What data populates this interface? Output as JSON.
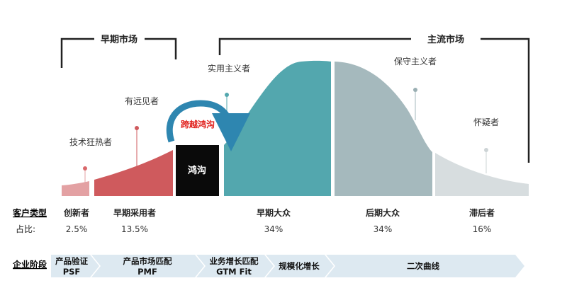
{
  "market_labels": {
    "early": "早期市场",
    "mainstream": "主流市场"
  },
  "segment_labels": {
    "innovators": "技术狂热者",
    "early_adopters": "有远见者",
    "early_majority": "实用主义者",
    "late_majority": "保守主义者",
    "laggards": "怀疑者"
  },
  "chasm": {
    "box_label": "鸿沟",
    "arrow_label": "跨越鸿沟"
  },
  "customer_types": {
    "row_title": "客户类型",
    "items": [
      "创新者",
      "早期采用者",
      "早期大众",
      "后期大众",
      "滞后者"
    ]
  },
  "share": {
    "row_title": "占比:",
    "values": [
      "2.5%",
      "13.5%",
      "34%",
      "34%",
      "16%"
    ]
  },
  "stages": {
    "row_title": "企业阶段",
    "items": [
      {
        "line1": "产品验证",
        "line2": "PSF"
      },
      {
        "line1": "产品市场匹配",
        "line2": "PMF"
      },
      {
        "line1": "业务增长匹配",
        "line2": "GTM Fit"
      },
      {
        "line1": "规模化增长",
        "line2": ""
      },
      {
        "line1": "二次曲线",
        "line2": ""
      }
    ]
  },
  "colors": {
    "innovators": "#e3a1a3",
    "early_adopters": "#cf5a5d",
    "chasm": "#0a0a0a",
    "early_majority": "#53a7ae",
    "late_majority": "#a5b9bd",
    "laggards": "#d7dddf",
    "arrow": "#2e86b0",
    "arrow_text": "#e0201c",
    "stage_bar": "#dde9f1"
  }
}
